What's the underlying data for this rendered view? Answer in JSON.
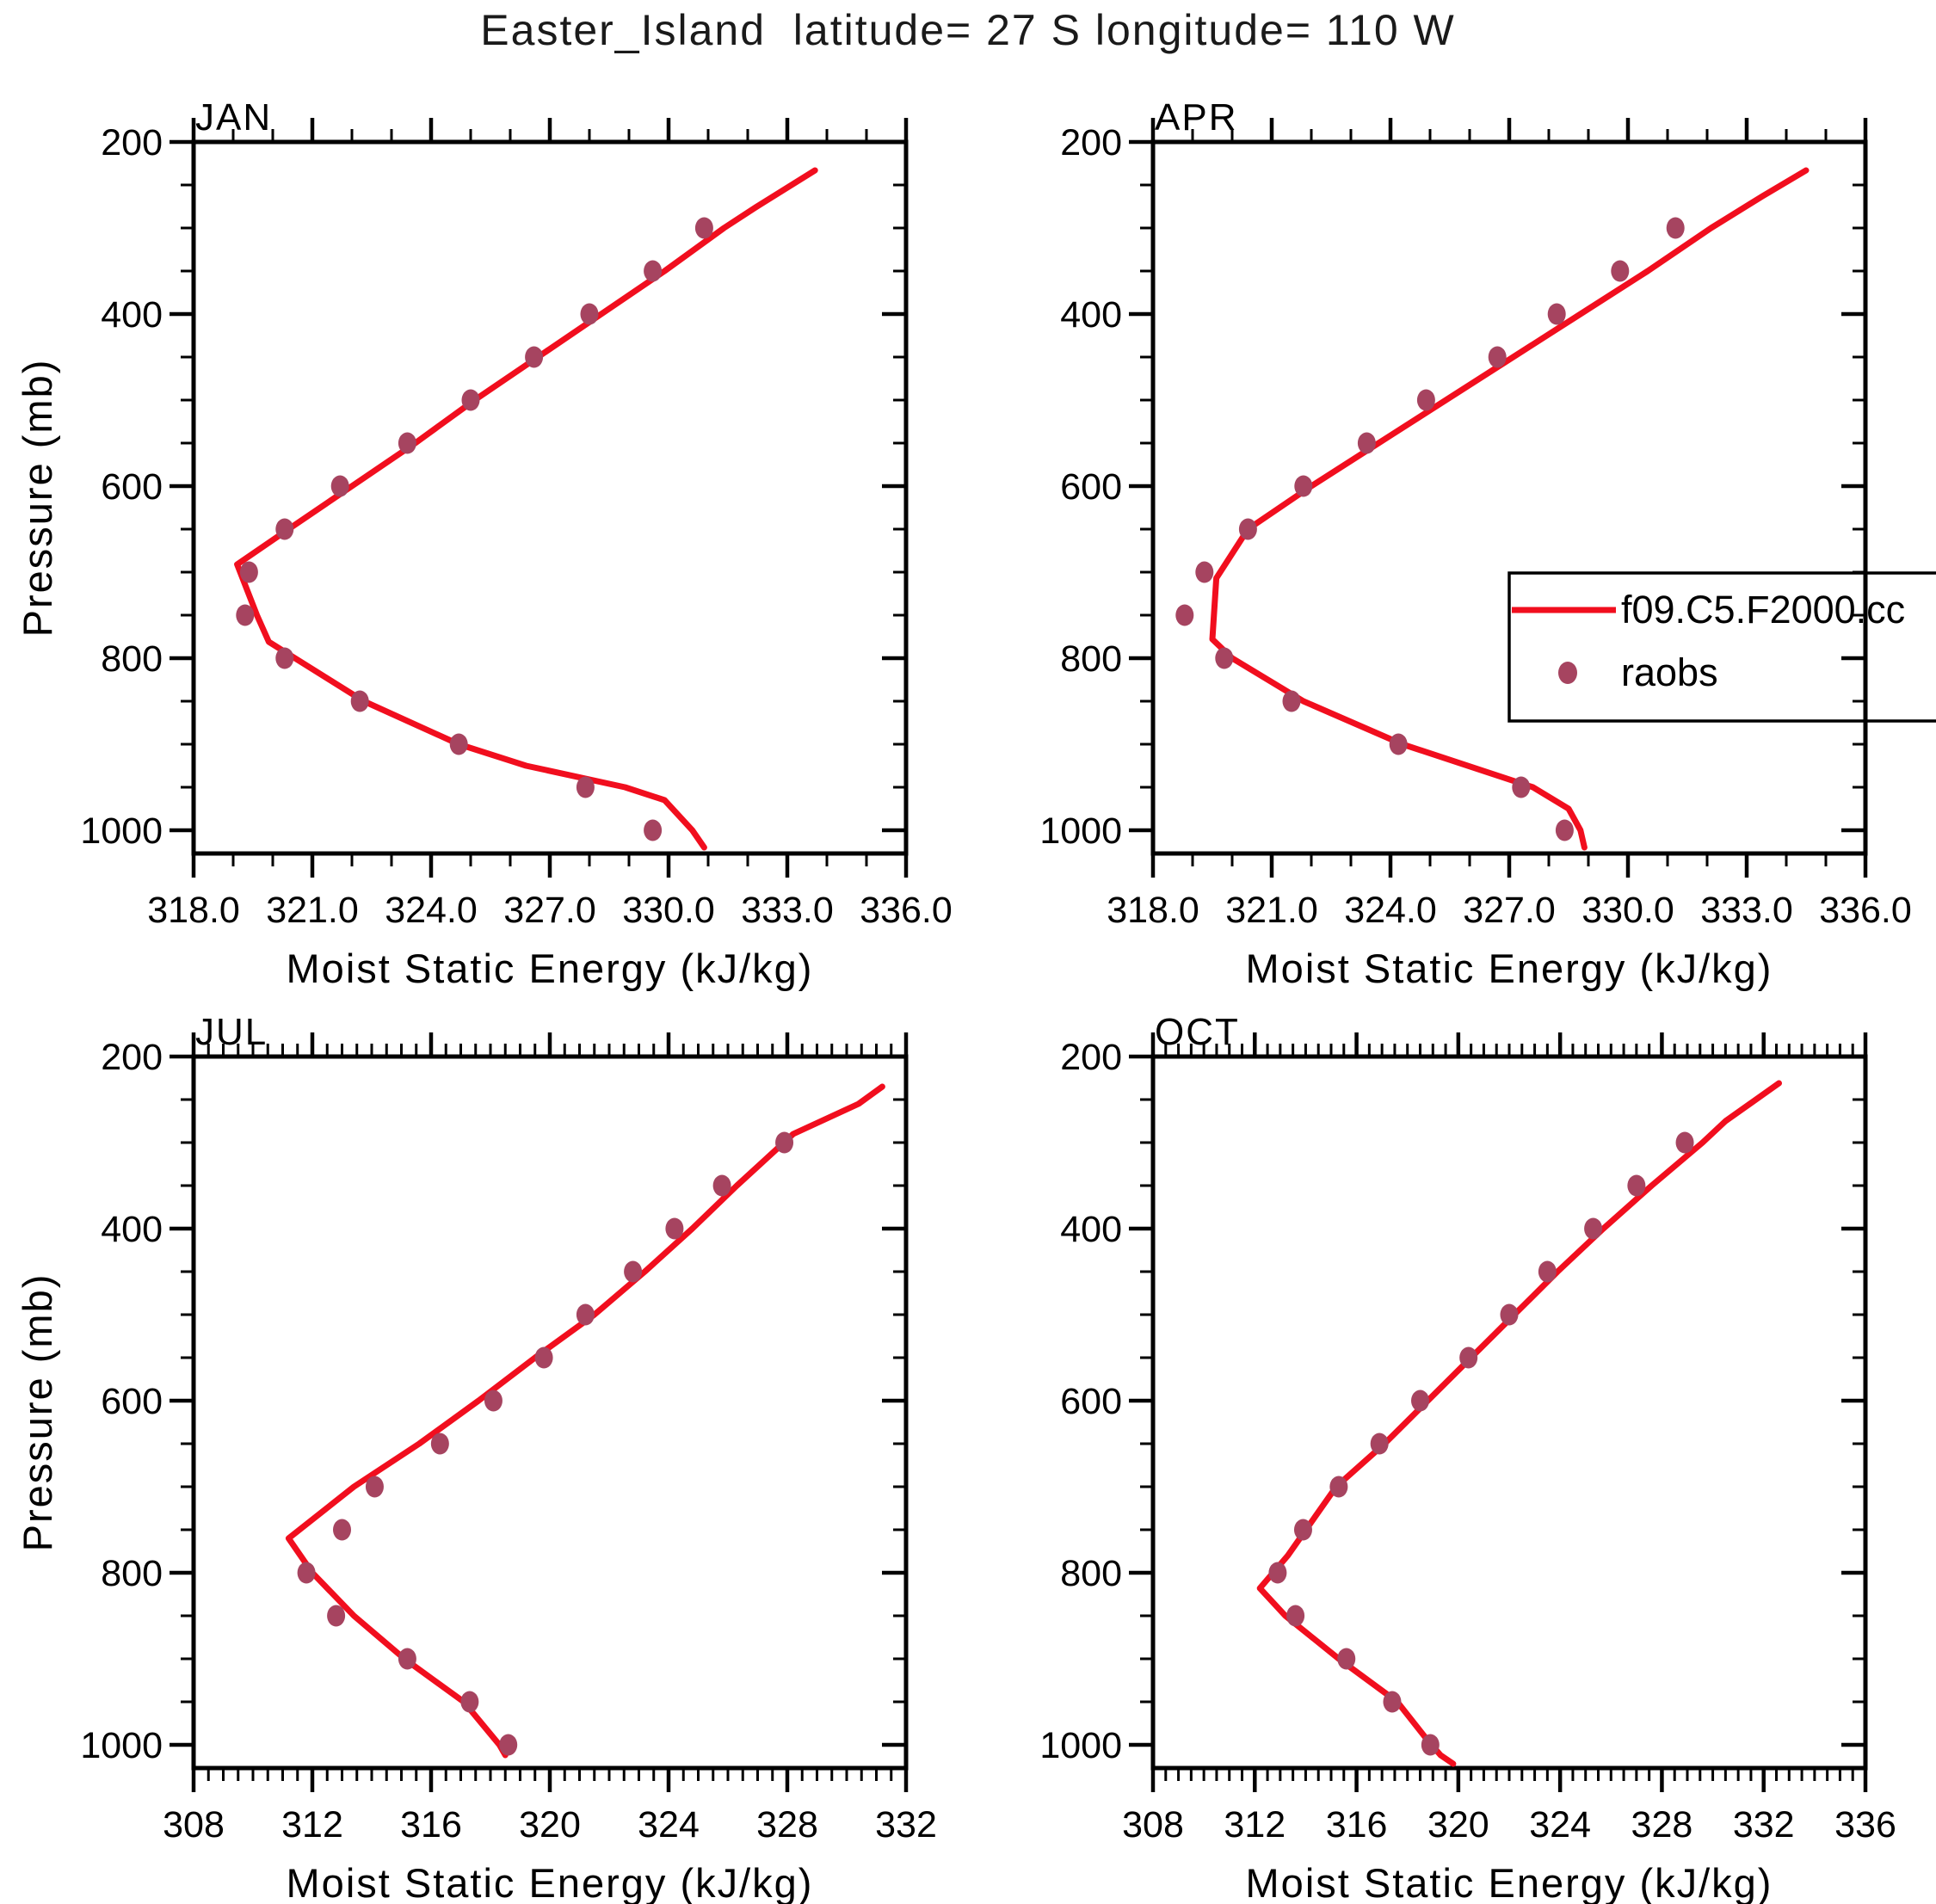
{
  "title": "Easter_Island  latitude= 27 S longitude= 110 W",
  "colors": {
    "model_line": "#f10e1e",
    "raobs_marker": "#a64460",
    "axis": "#000000",
    "background": "#ffffff"
  },
  "chart_data": {
    "type": "line",
    "title": "Easter_Island  latitude= 27 S longitude= 110 W",
    "xlabel": "Moist Static Energy (kJ/kg)",
    "ylabel": "Pressure (mb)",
    "grid": false,
    "legend": {
      "position": "inside APR panel, right side, overflowing page right edge",
      "entries": [
        {
          "type": "line",
          "label": "f09.C5.F2000.cc",
          "color": "#f10e1e"
        },
        {
          "type": "marker",
          "label": "raobs",
          "color": "#a64460"
        }
      ]
    },
    "y_axis": {
      "label": "Pressure (mb)",
      "min": 200,
      "max": 1027,
      "inverted": true,
      "major_ticks": [
        200,
        400,
        600,
        800,
        1000
      ],
      "tick_labels": [
        "200",
        "400",
        "600",
        "800",
        "1000"
      ],
      "minor_step": 50
    },
    "raobs_pressures_mb": [
      300,
      350,
      400,
      450,
      500,
      550,
      600,
      650,
      700,
      750,
      800,
      850,
      900,
      950,
      1000
    ],
    "panels": [
      {
        "id": "JAN",
        "title": "JAN",
        "x_axis": {
          "min": 318,
          "max": 336,
          "major_step": 3,
          "minor_step": 1,
          "tick_labels": [
            "318.0",
            "321.0",
            "324.0",
            "327.0",
            "330.0",
            "333.0",
            "336.0"
          ]
        },
        "raobs_mse": [
          330.9,
          329.6,
          328.0,
          326.6,
          325.0,
          323.4,
          321.7,
          320.3,
          319.4,
          319.3,
          320.3,
          322.2,
          324.7,
          327.9,
          329.6
        ],
        "model_line_p_mse": [
          [
            233,
            333.7
          ],
          [
            276,
            332.2
          ],
          [
            300,
            331.4
          ],
          [
            350,
            329.9
          ],
          [
            400,
            328.3
          ],
          [
            450,
            326.7
          ],
          [
            500,
            325.1
          ],
          [
            550,
            323.6
          ],
          [
            600,
            322.0
          ],
          [
            650,
            320.4
          ],
          [
            691,
            319.1
          ],
          [
            750,
            319.6
          ],
          [
            781,
            319.9
          ],
          [
            850,
            322.3
          ],
          [
            900,
            324.7
          ],
          [
            925,
            326.4
          ],
          [
            950,
            328.9
          ],
          [
            965,
            329.9
          ],
          [
            1000,
            330.6
          ],
          [
            1020,
            330.9
          ]
        ]
      },
      {
        "id": "APR",
        "title": "APR",
        "x_axis": {
          "min": 318,
          "max": 336,
          "major_step": 3,
          "minor_step": 1,
          "tick_labels": [
            "318.0",
            "321.0",
            "324.0",
            "327.0",
            "330.0",
            "333.0",
            "336.0"
          ]
        },
        "raobs_mse": [
          331.2,
          329.8,
          328.2,
          326.7,
          324.9,
          323.4,
          321.8,
          320.4,
          319.3,
          318.8,
          319.8,
          321.5,
          324.2,
          327.3,
          328.4
        ],
        "model_line_p_mse": [
          [
            233,
            334.5
          ],
          [
            263,
            333.4
          ],
          [
            300,
            332.1
          ],
          [
            350,
            330.5
          ],
          [
            400,
            328.8
          ],
          [
            450,
            327.1
          ],
          [
            500,
            325.4
          ],
          [
            550,
            323.7
          ],
          [
            600,
            322.0
          ],
          [
            650,
            320.4
          ],
          [
            707,
            319.6
          ],
          [
            778,
            319.5
          ],
          [
            800,
            320.0
          ],
          [
            850,
            321.8
          ],
          [
            900,
            324.3
          ],
          [
            950,
            327.6
          ],
          [
            975,
            328.5
          ],
          [
            1000,
            328.8
          ],
          [
            1020,
            328.9
          ]
        ]
      },
      {
        "id": "JUL",
        "title": "JUL",
        "x_axis": {
          "min": 308,
          "max": 332,
          "major_step": 4,
          "minor_step": 0.5,
          "tick_labels": [
            "308",
            "312",
            "316",
            "320",
            "324",
            "328",
            "332"
          ]
        },
        "raobs_mse": [
          327.9,
          325.8,
          324.2,
          322.8,
          321.2,
          319.8,
          318.1,
          316.3,
          314.1,
          313.0,
          311.8,
          312.8,
          315.2,
          317.3,
          318.6
        ],
        "model_line_p_mse": [
          [
            235,
            331.2
          ],
          [
            255,
            330.4
          ],
          [
            290,
            328.2
          ],
          [
            350,
            326.3
          ],
          [
            400,
            324.8
          ],
          [
            450,
            323.2
          ],
          [
            500,
            321.5
          ],
          [
            550,
            319.5
          ],
          [
            600,
            317.6
          ],
          [
            650,
            315.6
          ],
          [
            700,
            313.4
          ],
          [
            760,
            311.2
          ],
          [
            800,
            312.0
          ],
          [
            850,
            313.4
          ],
          [
            900,
            315.1
          ],
          [
            950,
            317.1
          ],
          [
            1000,
            318.3
          ],
          [
            1012,
            318.5
          ]
        ]
      },
      {
        "id": "OCT",
        "title": "OCT",
        "x_axis": {
          "min": 308,
          "max": 336,
          "major_step": 4,
          "minor_step": 0.5,
          "tick_labels": [
            "308",
            "312",
            "316",
            "320",
            "324",
            "328",
            "332",
            "336"
          ]
        },
        "raobs_mse": [
          328.9,
          327.0,
          325.3,
          323.5,
          322.0,
          320.4,
          318.5,
          316.9,
          315.3,
          313.9,
          312.9,
          313.6,
          315.6,
          317.4,
          318.9
        ],
        "model_line_p_mse": [
          [
            231,
            332.6
          ],
          [
            275,
            330.5
          ],
          [
            300,
            329.6
          ],
          [
            350,
            327.6
          ],
          [
            400,
            325.7
          ],
          [
            450,
            323.9
          ],
          [
            500,
            322.2
          ],
          [
            550,
            320.5
          ],
          [
            600,
            318.8
          ],
          [
            650,
            317.1
          ],
          [
            700,
            315.2
          ],
          [
            780,
            313.3
          ],
          [
            818,
            312.2
          ],
          [
            850,
            313.2
          ],
          [
            900,
            315.3
          ],
          [
            950,
            317.6
          ],
          [
            995,
            318.8
          ],
          [
            1012,
            319.3
          ],
          [
            1022,
            319.8
          ]
        ]
      }
    ]
  }
}
